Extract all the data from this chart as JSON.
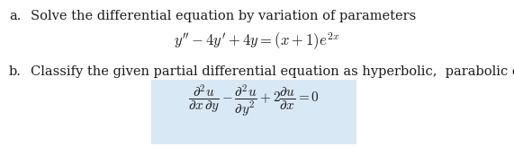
{
  "bg_color": "#ffffff",
  "font_color": "#1c1c1c",
  "box_color": "#d9e8f5",
  "label_a": "a.",
  "label_b": "b.",
  "text_a": "Solve the differential equation by variation of parameters",
  "equation_a": "$y'' - 4y' + 4y = (x+1)e^{2x}$",
  "text_b": "Classify the given partial differential equation as hyperbolic,  parabolic or elliptic",
  "equation_b": "$\\dfrac{\\partial^2 u}{\\partial x\\,\\partial y} - \\dfrac{\\partial^2 u}{\\partial y^2} + 2\\dfrac{\\partial u}{\\partial x} = 0$",
  "label_fontsize": 10.5,
  "text_fontsize": 10.5,
  "eq_a_fontsize": 12,
  "eq_b_fontsize": 11,
  "fig_width": 5.71,
  "fig_height": 1.73,
  "dpi": 100
}
